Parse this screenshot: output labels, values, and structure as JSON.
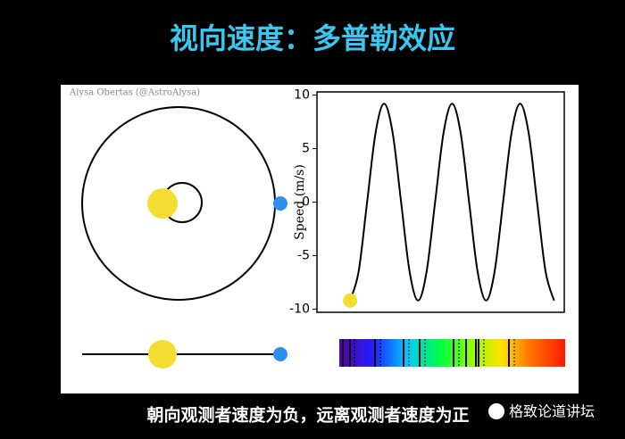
{
  "title": "视向速度：多普勒效应",
  "credit": "Alysa Obertas (@AstroAlysa)",
  "chart_data": {
    "type": "line",
    "ylabel": "Speed (m/s)",
    "x": [
      0,
      1,
      2,
      3,
      4,
      5,
      6,
      7,
      8,
      9,
      10,
      11,
      12,
      13,
      14,
      15,
      16,
      17,
      18,
      19,
      20,
      21,
      22,
      23,
      24
    ],
    "series": [
      {
        "color": "#000000",
        "values": [
          -9.2,
          -6.5,
          0,
          6.5,
          9.2,
          6.5,
          0,
          -6.5,
          -9.2,
          -6.5,
          0,
          6.5,
          9.2,
          6.5,
          0,
          -6.5,
          -9.2,
          -6.5,
          0,
          6.5,
          9.2,
          6.5,
          0,
          -6.5,
          -9.2
        ]
      }
    ],
    "xlim": [
      -3.9,
      25.2
    ],
    "ylim": [
      -10.3,
      10.3
    ],
    "yticks": [
      10,
      5,
      0,
      -5,
      -10
    ]
  },
  "caption": "朝向观测者速度为负，远离观测者速度为正",
  "watermark": "格致论道讲坛"
}
